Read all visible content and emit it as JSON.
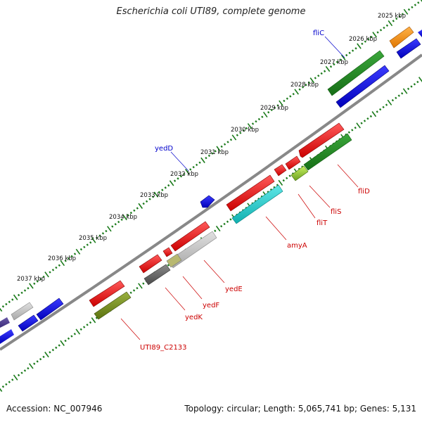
{
  "title": "Escherichia coli UTI89, complete genome",
  "accession": "Accession: NC_007946",
  "summary": "Topology: circular; Length: 5,065,741 bp; Genes: 5,131",
  "colors": {
    "forward_label": "#0000cc",
    "reverse_label": "#cc0000",
    "tick": "#1a7a1a",
    "backbone": "#888888"
  },
  "kbp_labels": [
    "2025 kbp",
    "2026 kbp",
    "2027 kbp",
    "2028 kbp",
    "2029 kbp",
    "2030 kbp",
    "2031 kbp",
    "2032 kbp",
    "2033 kbp",
    "2034 kbp",
    "2035 kbp",
    "2036 kbp",
    "2037 kbp"
  ],
  "forward_gene_labels": [
    {
      "name": "fliC"
    },
    {
      "name": "yedD"
    }
  ],
  "reverse_gene_labels": [
    {
      "name": "fliD"
    },
    {
      "name": "fliS"
    },
    {
      "name": "fliT"
    },
    {
      "name": "amyA"
    },
    {
      "name": "yedE"
    },
    {
      "name": "yedF"
    },
    {
      "name": "yedK"
    },
    {
      "name": "UTI89_C2133"
    }
  ]
}
